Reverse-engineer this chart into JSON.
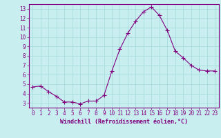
{
  "x": [
    0,
    1,
    2,
    3,
    4,
    5,
    6,
    7,
    8,
    9,
    10,
    11,
    12,
    13,
    14,
    15,
    16,
    17,
    18,
    19,
    20,
    21,
    22,
    23
  ],
  "y": [
    4.7,
    4.8,
    4.2,
    3.7,
    3.1,
    3.1,
    2.9,
    3.2,
    3.2,
    3.8,
    6.4,
    8.7,
    10.4,
    11.7,
    12.7,
    13.2,
    12.3,
    10.7,
    8.5,
    7.8,
    7.0,
    6.5,
    6.4,
    6.4
  ],
  "line_color": "#800080",
  "marker": "+",
  "marker_size": 4,
  "background_color": "#c8eef0",
  "grid_color": "#aadddd",
  "xlabel": "Windchill (Refroidissement éolien,°C)",
  "xlabel_color": "#800080",
  "tick_color": "#800080",
  "label_color": "#800080",
  "ylim": [
    2.5,
    13.5
  ],
  "xlim": [
    -0.5,
    23.5
  ],
  "yticks": [
    3,
    4,
    5,
    6,
    7,
    8,
    9,
    10,
    11,
    12,
    13
  ],
  "xticks": [
    0,
    1,
    2,
    3,
    4,
    5,
    6,
    7,
    8,
    9,
    10,
    11,
    12,
    13,
    14,
    15,
    16,
    17,
    18,
    19,
    20,
    21,
    22,
    23
  ],
  "spine_color": "#800080",
  "tick_fontsize": 5.5,
  "xlabel_fontsize": 6.0
}
